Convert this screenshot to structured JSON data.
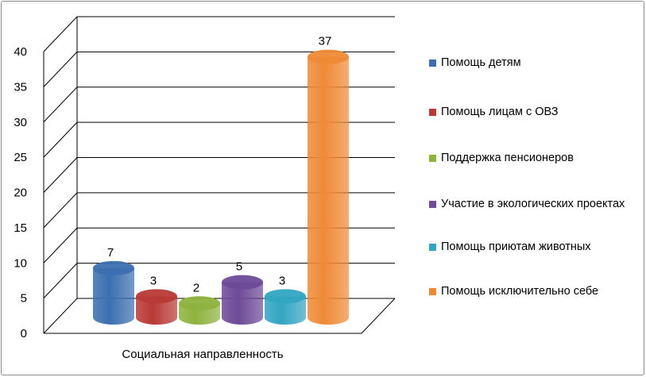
{
  "chart_data": {
    "type": "bar",
    "categories": [
      "Социальная направленность"
    ],
    "series": [
      {
        "name": "Помощь детям",
        "values": [
          7
        ],
        "color": "#3c6fb0"
      },
      {
        "name": "Помощь лицам с ОВЗ",
        "values": [
          3
        ],
        "color": "#b83a36"
      },
      {
        "name": "Поддержка пенсионеров",
        "values": [
          2
        ],
        "color": "#8eb23e"
      },
      {
        "name": "Участие в экологических проектах",
        "values": [
          5
        ],
        "color": "#6e4a98"
      },
      {
        "name": "Помощь приютам животных",
        "values": [
          3
        ],
        "color": "#33a5c2"
      },
      {
        "name": "Помощь исключительно себе",
        "values": [
          37
        ],
        "color": "#ee8a36"
      }
    ],
    "ylim": [
      0,
      40
    ],
    "yticks": [
      0,
      5,
      10,
      15,
      20,
      25,
      30,
      35,
      40
    ],
    "data_labels": [
      "7",
      "3",
      "2",
      "5",
      "3",
      "37"
    ],
    "style": "3d-cylinder",
    "grid": true,
    "legend_position": "right"
  }
}
